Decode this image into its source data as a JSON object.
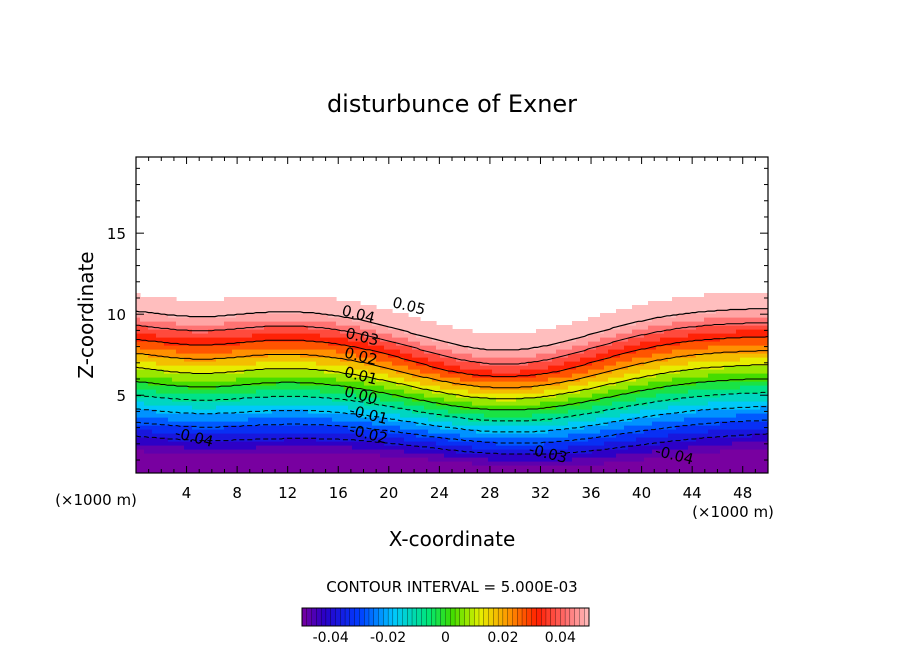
{
  "chart_data": {
    "type": "heatmap",
    "title": "disturbunce of Exner",
    "xlabel": "X-coordinate",
    "ylabel": "Z-coordinate",
    "x_unit_left": "(×1000 m)",
    "x_unit_right": "(×1000 m)",
    "xlim": [
      0,
      50
    ],
    "ylim": [
      0.2,
      19.7
    ],
    "x_ticks": [
      4,
      8,
      12,
      16,
      20,
      24,
      28,
      32,
      36,
      40,
      44,
      48
    ],
    "y_ticks": [
      5,
      10,
      15
    ],
    "contour_interval_label": "CONTOUR INTERVAL = 5.000E-03",
    "contour_interval": 0.005,
    "color_range": [
      -0.05,
      0.05
    ],
    "colorbar_ticks": [
      "-0.04",
      "-0.02",
      "0",
      "0.02",
      "0.04"
    ],
    "colorbar_tick_values": [
      -0.04,
      -0.02,
      0,
      0.02,
      0.04
    ],
    "contour_labels": [
      {
        "text": "0.05",
        "x": 21.5,
        "z": 10.2
      },
      {
        "text": "0.04",
        "x": 17.5,
        "z": 9.7
      },
      {
        "text": "0.03",
        "x": 17.8,
        "z": 8.3
      },
      {
        "text": "0.02",
        "x": 17.7,
        "z": 7.1
      },
      {
        "text": "0.01",
        "x": 17.7,
        "z": 5.9
      },
      {
        "text": "0.00",
        "x": 17.7,
        "z": 4.7
      },
      {
        "text": "-0.01",
        "x": 18.3,
        "z": 3.5
      },
      {
        "text": "-0.02",
        "x": 18.3,
        "z": 2.3
      },
      {
        "text": "-0.04",
        "x": 4.5,
        "z": 2.1
      },
      {
        "text": "-0.03",
        "x": 32.5,
        "z": 1.1
      },
      {
        "text": "-0.04",
        "x": 42.5,
        "z": 1.0
      }
    ],
    "blank_region_above": 0.05
  }
}
